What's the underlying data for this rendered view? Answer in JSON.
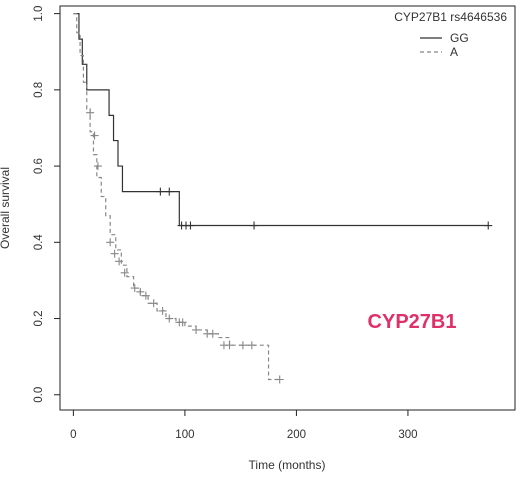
{
  "chart_data": {
    "type": "line",
    "title": "",
    "xlabel": "Time (months)",
    "ylabel": "Overall survival",
    "xlim": [
      -12,
      396
    ],
    "ylim": [
      -0.04,
      1.02
    ],
    "xticks": [
      0,
      100,
      200,
      300
    ],
    "xtick_labels": [
      "0",
      "100",
      "200",
      "300"
    ],
    "yticks": [
      0.0,
      0.2,
      0.4,
      0.6,
      0.8,
      1.0
    ],
    "ytick_labels": [
      "0.0",
      "0.2",
      "0.4",
      "0.6",
      "0.8",
      "1.0"
    ],
    "grid": false,
    "legend": {
      "title": "CYP27B1 rs4646536",
      "position": "top-right",
      "entries": [
        "GG",
        "A"
      ]
    },
    "annotation": {
      "text": "CYP27B1",
      "color": "#e0306a"
    },
    "series": [
      {
        "name": "GG",
        "line_style": "solid",
        "color": "#333333",
        "x": [
          0,
          5,
          8,
          12,
          32,
          36,
          40,
          44,
          95,
          372
        ],
        "y": [
          1.0,
          0.933,
          0.867,
          0.8,
          0.733,
          0.667,
          0.6,
          0.533,
          0.444,
          0.444
        ],
        "censor_x": [
          78,
          86,
          97,
          101,
          105,
          162,
          372
        ],
        "censor_y": [
          0.533,
          0.533,
          0.444,
          0.444,
          0.444,
          0.444,
          0.444
        ]
      },
      {
        "name": "A",
        "line_style": "dashed",
        "color": "#888888",
        "x": [
          0,
          3,
          6,
          9,
          12,
          15,
          18,
          21,
          25,
          29,
          33,
          38,
          43,
          48,
          54,
          60,
          67,
          75,
          83,
          92,
          100,
          110,
          120,
          130,
          140,
          150,
          160,
          168,
          175,
          185
        ],
        "y": [
          1.0,
          0.95,
          0.89,
          0.82,
          0.75,
          0.69,
          0.63,
          0.57,
          0.52,
          0.47,
          0.42,
          0.38,
          0.34,
          0.31,
          0.28,
          0.26,
          0.24,
          0.22,
          0.2,
          0.19,
          0.18,
          0.17,
          0.16,
          0.15,
          0.13,
          0.13,
          0.13,
          0.13,
          0.04,
          0.04
        ],
        "censor_x": [
          15,
          19,
          22,
          33,
          37,
          41,
          46,
          55,
          60,
          65,
          72,
          80,
          86,
          95,
          98,
          110,
          120,
          125,
          135,
          140,
          152,
          160,
          185
        ],
        "censor_y": [
          0.74,
          0.68,
          0.6,
          0.4,
          0.37,
          0.35,
          0.32,
          0.28,
          0.27,
          0.26,
          0.24,
          0.22,
          0.2,
          0.19,
          0.19,
          0.17,
          0.16,
          0.16,
          0.13,
          0.13,
          0.13,
          0.13,
          0.04
        ]
      }
    ]
  }
}
